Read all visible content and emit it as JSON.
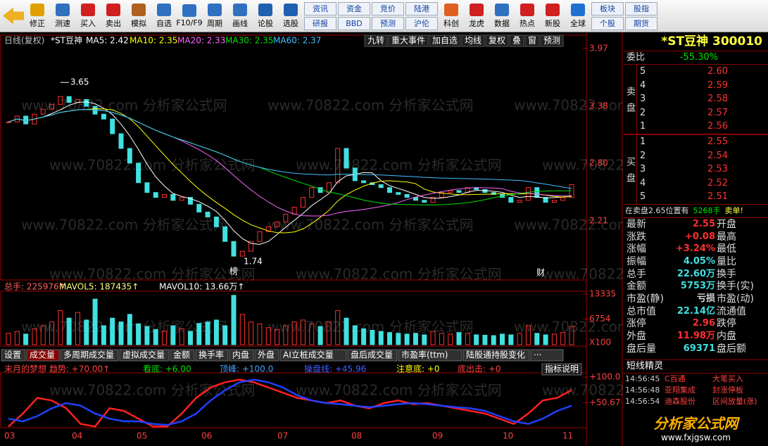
{
  "toolbar": {
    "tools_a": [
      "修正",
      "测速",
      "买入",
      "卖出",
      "模拟",
      "自选",
      "F10/F9",
      "周期",
      "画线",
      "论股",
      "选股"
    ],
    "info": [
      [
        "资讯",
        "研报"
      ],
      [
        "资金",
        "BBD"
      ],
      [
        "竞价",
        "预测"
      ],
      [
        "陆港",
        "沪伦"
      ]
    ],
    "tools_b": [
      "科创",
      "龙虎",
      "数据",
      "热点",
      "新股",
      "全球"
    ],
    "market": [
      [
        "板块",
        "个股"
      ],
      [
        "股指",
        "期货"
      ]
    ]
  },
  "header": {
    "period": "日线(复权)",
    "name": "*ST豆神",
    "ma": [
      {
        "label": "MA5: 2.42",
        "color": "#ffffff"
      },
      {
        "label": "MA10: 2.35",
        "color": "#ffff00"
      },
      {
        "label": "MA20: 2.33",
        "color": "#ff66ff"
      },
      {
        "label": "MA30: 2.35",
        "color": "#00e000"
      },
      {
        "label": "MA60: 2.37",
        "color": "#40c0ff"
      }
    ],
    "buttons": [
      "九转",
      "重大事件",
      "加自选",
      "均线",
      "复权",
      "叠",
      "窗",
      "预测"
    ]
  },
  "watermark": "www.70822.com  分析家公式网",
  "price_chart": {
    "yticks": [
      3.97,
      3.38,
      {
        "value": 2.8,
        "label": "2.80"
      },
      2.21
    ],
    "closes": [
      3.22,
      3.28,
      3.2,
      3.3,
      3.35,
      3.4,
      3.48,
      3.42,
      3.45,
      3.38,
      3.3,
      3.25,
      3.1,
      2.95,
      2.8,
      2.6,
      2.5,
      2.45,
      2.48,
      2.42,
      2.45,
      2.38,
      2.3,
      2.25,
      2.15,
      2.0,
      1.85,
      1.9,
      2.0,
      2.1,
      2.15,
      2.2,
      2.28,
      2.35,
      2.45,
      2.55,
      2.5,
      2.6,
      2.95,
      2.75,
      2.62,
      2.6,
      2.58,
      2.55,
      2.5,
      2.48,
      2.45,
      2.42,
      2.4,
      2.45,
      2.5,
      2.52,
      2.5,
      2.55,
      2.53,
      2.5,
      2.48,
      2.45,
      2.4,
      2.42,
      2.55,
      2.45,
      2.4,
      2.42,
      2.45,
      2.58
    ],
    "annotations": {
      "high": "3.65",
      "low": "1.74",
      "mark1": "榜",
      "mark2": "财"
    }
  },
  "volume_chart": {
    "header": [
      "总手: 225976↑",
      "MAVOL5: 187435↑",
      "MAVOL10: 13.66万↑"
    ],
    "yticks": [
      13335,
      6754
    ],
    "unit": "X100",
    "values": [
      3000,
      3500,
      2800,
      4200,
      5000,
      6000,
      9000,
      7000,
      8500,
      6500,
      12000,
      5000,
      7000,
      6000,
      8000,
      5500,
      4800,
      4000,
      3600,
      5000,
      4200,
      3500,
      5600,
      6000,
      6500,
      5000,
      13000,
      8000,
      6000,
      5500,
      4500,
      4000,
      5000,
      6000,
      6500,
      5500,
      4800,
      6000,
      9000,
      7000,
      5000,
      4200,
      3800,
      3500,
      3200,
      3000,
      2800,
      3000,
      2600,
      3500,
      3000,
      2800,
      3200,
      3000,
      2600,
      2500,
      2400,
      2800,
      2600,
      3000,
      5000,
      3000,
      2600,
      2800,
      3200,
      4800
    ]
  },
  "tabs": [
    "设置",
    "成交量",
    "多周期成交量",
    "虚拟成交量",
    "金额",
    "换手率",
    "内盘",
    "外盘",
    "AI立桩成交量",
    "盘后成交量",
    "市盈率(ttm)",
    "陆股通持股变化",
    "···"
  ],
  "indicator": {
    "header": [
      {
        "text": "末月的梦想 趋势: +70.00↑",
        "color": "#ff4040"
      },
      {
        "text": "看底: +6.00",
        "color": "#00e000"
      },
      {
        "text": "顶峰: +100.0",
        "color": "#40a0ff"
      },
      {
        "text": "操盘线: +45.96",
        "color": "#4060ff"
      },
      {
        "text": "注意底: +0",
        "color": "#ffff00"
      },
      {
        "text": "底出击: +0",
        "color": "#ff4040"
      }
    ],
    "help": "指标说明",
    "yticks": [
      {
        "value": 100,
        "label": "+100.0"
      },
      {
        "value": 50.67,
        "label": "+50.67"
      }
    ],
    "series": [
      {
        "color": "#ff2020",
        "values": [
          5,
          30,
          60,
          55,
          40,
          10,
          5,
          40,
          35,
          20,
          5,
          5,
          30,
          60,
          80,
          90,
          95,
          90,
          80,
          70,
          60,
          55,
          50,
          55,
          45,
          40,
          50,
          55,
          48,
          50,
          45,
          40,
          35,
          30,
          20,
          10,
          30,
          55,
          60,
          75
        ]
      },
      {
        "color": "#2040ff",
        "values": [
          20,
          15,
          25,
          40,
          50,
          45,
          30,
          20,
          15,
          15,
          10,
          8,
          15,
          30,
          55,
          75,
          90,
          95,
          90,
          80,
          65,
          55,
          50,
          48,
          45,
          42,
          45,
          48,
          50,
          48,
          45,
          42,
          40,
          35,
          25,
          15,
          10,
          20,
          35,
          45
        ]
      }
    ]
  },
  "months": [
    "03",
    "04",
    "05",
    "06",
    "07",
    "08",
    "09",
    "10",
    "11"
  ],
  "quote": {
    "title": "*ST豆神 300010",
    "weibi_label": "委比",
    "weibi": "-55.30%",
    "sell_label": "卖盘",
    "buy_label": "买盘",
    "sell": [
      [
        "5",
        "2.60"
      ],
      [
        "4",
        "2.59"
      ],
      [
        "3",
        "2.58"
      ],
      [
        "2",
        "2.57"
      ],
      [
        "1",
        "2.56"
      ]
    ],
    "buy": [
      [
        "1",
        "2.55"
      ],
      [
        "2",
        "2.54"
      ],
      [
        "3",
        "2.53"
      ],
      [
        "4",
        "2.52"
      ],
      [
        "5",
        "2.51"
      ]
    ],
    "notice": [
      "在卖盘2.65位置有",
      "5268手",
      "卖单!"
    ],
    "stats": [
      [
        "最新",
        "2.55",
        "开盘"
      ],
      [
        "涨跌",
        "+0.08",
        "最高"
      ],
      [
        "涨幅",
        "+3.24%",
        "最低"
      ],
      [
        "振幅",
        "4.05%",
        "量比"
      ],
      [
        "总手",
        "22.60万",
        "换手"
      ],
      [
        "金额",
        "5753万",
        "换手(实)"
      ],
      [
        "市盈(静)",
        "亏损",
        "市盈(动)"
      ],
      [
        "总市值",
        "22.14亿",
        "流通值"
      ],
      [
        "涨停",
        "2.96",
        "跌停"
      ],
      [
        "外盘",
        "11.98万",
        "内盘"
      ],
      [
        "盘后量",
        "69371",
        "盘后额"
      ]
    ],
    "sprite_title": "短线精灵",
    "sprite": [
      [
        "14:56:45",
        "C百通",
        "大笔买入"
      ],
      [
        "14:56:48",
        "亚翔集成",
        "封涨停板"
      ],
      [
        "14:56:54",
        "迪森股份",
        "区间放量(涨)"
      ]
    ],
    "logo": "分析家公式网",
    "logo_url": "www.fxjgsw.com"
  }
}
